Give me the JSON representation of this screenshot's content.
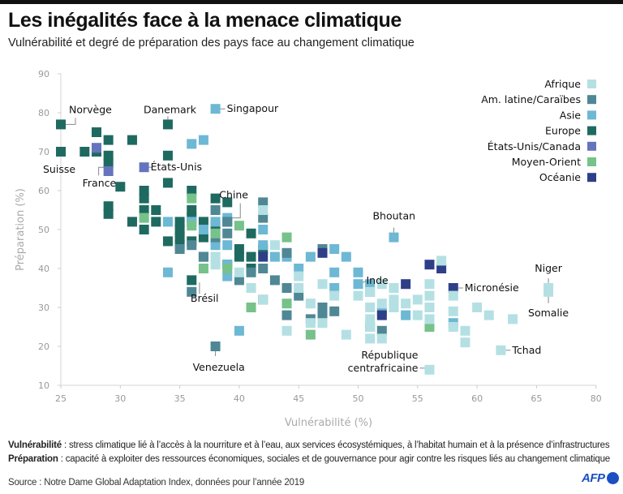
{
  "header": {
    "title": "Les inégalités face à la menace climatique",
    "subtitle": "Vulnérabilité et degré de préparation des pays face au changement climatique"
  },
  "footer": {
    "note1_term": "Vulnérabilité",
    "note1_text": " : stress climatique lié à l’accès à la nourriture et à l’eau, aux services écosystémiques, à l’habitat humain et à la présence d’infrastructures",
    "note2_term": "Préparation",
    "note2_text": " : capacité à exploiter des ressources économiques, sociales et de gouvernance pour agir contre les risques liés au changement climatique",
    "source": "Source : Notre Dame Global Adaptation Index, données pour l’année 2019",
    "logo": "AFP"
  },
  "chart_data": {
    "type": "scatter",
    "title": "Les inégalités face à la menace climatique",
    "subtitle": "Vulnérabilité et degré de préparation des pays face au changement climatique",
    "xlabel": "Vulnérabilité (%)",
    "ylabel": "Préparation (%)",
    "xlim": [
      25,
      80
    ],
    "ylim": [
      10,
      90
    ],
    "x_axis_break": [
      65,
      80
    ],
    "xticks": [
      25,
      30,
      35,
      40,
      45,
      50,
      55,
      60,
      65,
      80
    ],
    "yticks": [
      10,
      20,
      30,
      40,
      50,
      60,
      70,
      80,
      90
    ],
    "grid": false,
    "legend_position": "top-right",
    "legend": [
      {
        "name": "Afrique",
        "color": "#b4e0e3"
      },
      {
        "name": "Am. latine/Caraïbes",
        "color": "#4f8795"
      },
      {
        "name": "Asie",
        "color": "#6db8d4"
      },
      {
        "name": "Europe",
        "color": "#1f6a60"
      },
      {
        "name": "États-Unis/Canada",
        "color": "#6673bd"
      },
      {
        "name": "Moyen-Orient",
        "color": "#76c28a"
      },
      {
        "name": "Océanie",
        "color": "#2e3f88"
      }
    ],
    "series": [
      {
        "name": "Europe",
        "points": [
          [
            25,
            77
          ],
          [
            25,
            70
          ],
          [
            27,
            70
          ],
          [
            28,
            75
          ],
          [
            28,
            70
          ],
          [
            29,
            73
          ],
          [
            29,
            69
          ],
          [
            29,
            67
          ],
          [
            30,
            61
          ],
          [
            29,
            56
          ],
          [
            29,
            54
          ],
          [
            31,
            73
          ],
          [
            31,
            52
          ],
          [
            32,
            60
          ],
          [
            32,
            58
          ],
          [
            32,
            55
          ],
          [
            32,
            50
          ],
          [
            33,
            55
          ],
          [
            33,
            52
          ],
          [
            34,
            77
          ],
          [
            34,
            69
          ],
          [
            34,
            62
          ],
          [
            34,
            47
          ],
          [
            35,
            52
          ],
          [
            35,
            50
          ],
          [
            35,
            48
          ],
          [
            35,
            46
          ],
          [
            36,
            60
          ],
          [
            36,
            55
          ],
          [
            36,
            53
          ],
          [
            36,
            47
          ],
          [
            37,
            52
          ],
          [
            37,
            48
          ],
          [
            37,
            43
          ],
          [
            36,
            37
          ],
          [
            38,
            58
          ],
          [
            38,
            51
          ],
          [
            39,
            57
          ],
          [
            39,
            52
          ],
          [
            39,
            41
          ],
          [
            40,
            45
          ],
          [
            40,
            43
          ],
          [
            41,
            49
          ],
          [
            41,
            43
          ],
          [
            41,
            40
          ],
          [
            42,
            45
          ]
        ]
      },
      {
        "name": "États-Unis/Canada",
        "points": [
          [
            28,
            71
          ],
          [
            29,
            65
          ],
          [
            32,
            66
          ]
        ]
      },
      {
        "name": "Asie",
        "points": [
          [
            38,
            81
          ],
          [
            36,
            72
          ],
          [
            37,
            73
          ],
          [
            34,
            52
          ],
          [
            36,
            52
          ],
          [
            34,
            39
          ],
          [
            37,
            50
          ],
          [
            38,
            52
          ],
          [
            38,
            46
          ],
          [
            39,
            53
          ],
          [
            39,
            46
          ],
          [
            39,
            41
          ],
          [
            39,
            38
          ],
          [
            40,
            24
          ],
          [
            42,
            46
          ],
          [
            42,
            50
          ],
          [
            43,
            43
          ],
          [
            44,
            43
          ],
          [
            45,
            40
          ],
          [
            46,
            43
          ],
          [
            48,
            45
          ],
          [
            48,
            39
          ],
          [
            48,
            35
          ],
          [
            49,
            43
          ],
          [
            50,
            39
          ],
          [
            50,
            36
          ],
          [
            51,
            36
          ],
          [
            51,
            34
          ],
          [
            52,
            29
          ],
          [
            53,
            48
          ],
          [
            54,
            28
          ],
          [
            58,
            26
          ]
        ]
      },
      {
        "name": "Am. latine/Caraïbes",
        "points": [
          [
            35,
            45
          ],
          [
            36,
            34
          ],
          [
            36,
            46
          ],
          [
            37,
            43
          ],
          [
            38,
            55
          ],
          [
            38,
            48
          ],
          [
            39,
            52
          ],
          [
            39,
            49
          ],
          [
            40,
            37
          ],
          [
            41,
            39
          ],
          [
            42,
            57
          ],
          [
            42,
            53
          ],
          [
            42,
            40
          ],
          [
            42,
            32
          ],
          [
            43,
            37
          ],
          [
            44,
            44
          ],
          [
            44,
            35
          ],
          [
            44,
            28
          ],
          [
            45,
            33
          ],
          [
            46,
            27
          ],
          [
            47,
            45
          ],
          [
            47,
            30
          ],
          [
            47,
            28
          ],
          [
            48,
            29
          ],
          [
            52,
            24
          ],
          [
            38,
            20
          ],
          [
            51,
            25
          ]
        ]
      },
      {
        "name": "Moyen-Orient",
        "points": [
          [
            32,
            53
          ],
          [
            36,
            58
          ],
          [
            36,
            51
          ],
          [
            37,
            40
          ],
          [
            38,
            49
          ],
          [
            39,
            40
          ],
          [
            40,
            51
          ],
          [
            41,
            30
          ],
          [
            44,
            48
          ],
          [
            44,
            31
          ],
          [
            46,
            23
          ],
          [
            56,
            25
          ]
        ]
      },
      {
        "name": "Océanie",
        "points": [
          [
            42,
            43
          ],
          [
            47,
            44
          ],
          [
            52,
            28
          ],
          [
            54,
            36
          ],
          [
            56,
            41
          ],
          [
            57,
            40
          ],
          [
            58,
            35
          ]
        ]
      },
      {
        "name": "Afrique",
        "points": [
          [
            38,
            43
          ],
          [
            38,
            41
          ],
          [
            40,
            39
          ],
          [
            41,
            35
          ],
          [
            42,
            32
          ],
          [
            42,
            55
          ],
          [
            43,
            46
          ],
          [
            44,
            24
          ],
          [
            45,
            38
          ],
          [
            45,
            35
          ],
          [
            46,
            26
          ],
          [
            46,
            31
          ],
          [
            47,
            36
          ],
          [
            47,
            26
          ],
          [
            48,
            33
          ],
          [
            49,
            23
          ],
          [
            50,
            33
          ],
          [
            51,
            34
          ],
          [
            51,
            30
          ],
          [
            51,
            27
          ],
          [
            51,
            25
          ],
          [
            51,
            22
          ],
          [
            52,
            36
          ],
          [
            52,
            31
          ],
          [
            52,
            22
          ],
          [
            53,
            35
          ],
          [
            53,
            32
          ],
          [
            53,
            30
          ],
          [
            54,
            31
          ],
          [
            55,
            28
          ],
          [
            55,
            32
          ],
          [
            56,
            36
          ],
          [
            56,
            33
          ],
          [
            56,
            30
          ],
          [
            56,
            27
          ],
          [
            56,
            14
          ],
          [
            57,
            42
          ],
          [
            58,
            33
          ],
          [
            58,
            29
          ],
          [
            58,
            25
          ],
          [
            59,
            24
          ],
          [
            59,
            21
          ],
          [
            60,
            30
          ],
          [
            61,
            28
          ],
          [
            62,
            19
          ],
          [
            63,
            27
          ],
          [
            68,
            35
          ],
          [
            68,
            34
          ]
        ]
      }
    ],
    "annotations": [
      {
        "label": "Norvège",
        "x": 25,
        "y": 77
      },
      {
        "label": "Suisse",
        "x": 25,
        "y": 70
      },
      {
        "label": "France",
        "x": 29,
        "y": 66
      },
      {
        "label": "Danemark",
        "x": 34,
        "y": 77
      },
      {
        "label": "États-Unis",
        "x": 32,
        "y": 66
      },
      {
        "label": "Singapour",
        "x": 38,
        "y": 81
      },
      {
        "label": "Chine",
        "x": 39,
        "y": 53
      },
      {
        "label": "Brésil",
        "x": 37,
        "y": 36
      },
      {
        "label": "Venezuela",
        "x": 38,
        "y": 20
      },
      {
        "label": "Bhoutan",
        "x": 53,
        "y": 48
      },
      {
        "label": "Inde",
        "x": 50,
        "y": 36
      },
      {
        "label": "République centrafricaine",
        "x": 56,
        "y": 14
      },
      {
        "label": "Micronésie",
        "x": 58,
        "y": 35
      },
      {
        "label": "Tchad",
        "x": 62,
        "y": 19
      },
      {
        "label": "Niger",
        "x": 68,
        "y": 35
      },
      {
        "label": "Somalie",
        "x": 68,
        "y": 34
      }
    ]
  }
}
